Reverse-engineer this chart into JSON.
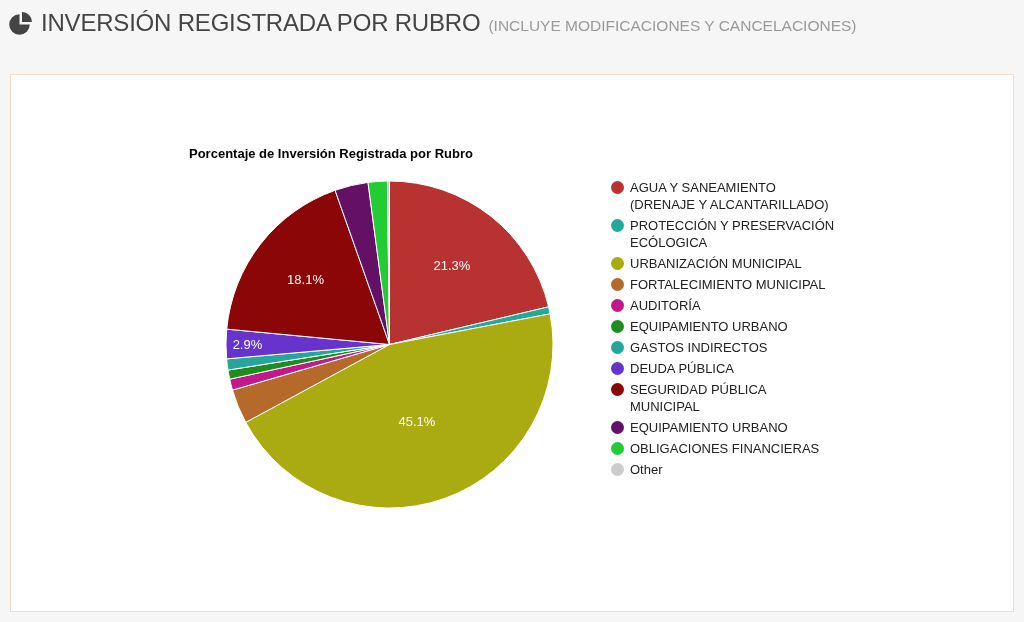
{
  "chart_data": {
    "type": "pie",
    "title": "INVERSIÓN REGISTRADA POR RUBRO",
    "subtitle": "(INCLUYE MODIFICACIONES Y CANCELACIONES)",
    "annotations": [
      "Porcentaje de Inversión Registrada por Rubro"
    ],
    "categories": [
      "AGUA Y SANEAMIENTO (DRENAJE Y ALCANTARILLADO)",
      "PROTECCIÓN Y PRESERVACIÓN ECÓLOGICA",
      "URBANIZACIÓN MUNICIPAL",
      "FORTALECIMIENTO MUNICIPAL",
      "AUDITORÍA",
      "EQUIPAMIENTO URBANO",
      "GASTOS INDIRECTOS",
      "DEUDA PÚBLICA",
      "SEGURIDAD PÚBLICA MUNICIPAL",
      "EQUIPAMIENTO URBANO",
      "OBLIGACIONES FINANCIERAS",
      "Other"
    ],
    "values": [
      21.3,
      0.7,
      45.1,
      3.4,
      1.1,
      0.9,
      1.1,
      2.9,
      18.1,
      3.3,
      1.9,
      0.2
    ],
    "colors": [
      "#b83232",
      "#22aa99",
      "#aaaa11",
      "#b5692a",
      "#c2188b",
      "#1e8c1e",
      "#26a69a",
      "#6633cc",
      "#8b0707",
      "#651067",
      "#22cc33",
      "#cccccc"
    ],
    "value_labels": [
      "21.3%",
      null,
      "45.1%",
      null,
      null,
      null,
      null,
      "2.9%",
      "18.1%",
      null,
      null,
      null
    ],
    "legend": "right"
  }
}
